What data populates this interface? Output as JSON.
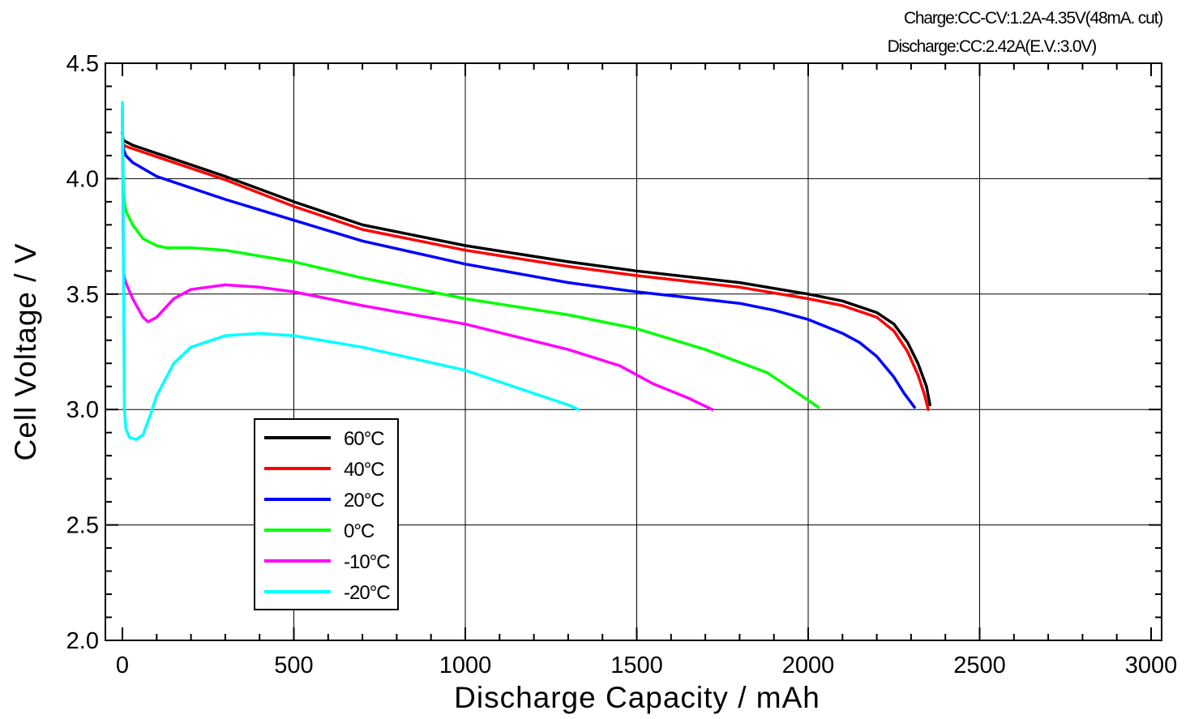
{
  "conditions": {
    "charge": "Charge:CC-CV:1.2A-4.35V(48mA. cut)",
    "discharge": "Discharge:CC:2.42A(E.V.:3.0V)"
  },
  "chart_data": {
    "type": "line",
    "xlabel": "Discharge  Capacity  /  mAh",
    "ylabel": "Cell  Voltage  /  V",
    "xlim": [
      0,
      3000
    ],
    "ylim": [
      2.0,
      4.5
    ],
    "xticks": [
      0,
      500,
      1000,
      1500,
      2000,
      2500,
      3000
    ],
    "xtick_labels": [
      "0",
      "500",
      "1000",
      "1500",
      "2000",
      "2500",
      "3000"
    ],
    "yticks": [
      2.0,
      2.5,
      3.0,
      3.5,
      4.0,
      4.5
    ],
    "ytick_labels": [
      "2.0",
      "2.5",
      "3.0",
      "3.5",
      "4.0",
      "4.5"
    ],
    "grid": true,
    "legend_position": "lower-left",
    "series": [
      {
        "name": "60°C",
        "color": "#000000",
        "x": [
          0,
          2,
          5,
          10,
          30,
          100,
          200,
          300,
          500,
          700,
          1000,
          1300,
          1500,
          1800,
          2000,
          2100,
          2200,
          2250,
          2290,
          2320,
          2345,
          2355
        ],
        "y": [
          4.2,
          4.17,
          4.165,
          4.16,
          4.145,
          4.11,
          4.06,
          4.01,
          3.9,
          3.8,
          3.71,
          3.64,
          3.6,
          3.55,
          3.5,
          3.47,
          3.42,
          3.37,
          3.29,
          3.2,
          3.1,
          3.02
        ]
      },
      {
        "name": "40°C",
        "color": "#ff0000",
        "x": [
          0,
          2,
          5,
          10,
          30,
          100,
          200,
          300,
          500,
          700,
          1000,
          1300,
          1500,
          1800,
          2000,
          2100,
          2200,
          2250,
          2290,
          2320,
          2340,
          2350
        ],
        "y": [
          4.17,
          4.15,
          4.145,
          4.14,
          4.13,
          4.095,
          4.045,
          3.995,
          3.88,
          3.78,
          3.69,
          3.62,
          3.58,
          3.53,
          3.48,
          3.45,
          3.4,
          3.34,
          3.25,
          3.15,
          3.06,
          3.0
        ]
      },
      {
        "name": "20°C",
        "color": "#0000ff",
        "x": [
          0,
          2,
          5,
          10,
          30,
          100,
          200,
          300,
          500,
          700,
          1000,
          1300,
          1500,
          1800,
          1900,
          2000,
          2100,
          2150,
          2200,
          2250,
          2280,
          2300,
          2310
        ],
        "y": [
          4.2,
          4.14,
          4.12,
          4.1,
          4.07,
          4.01,
          3.96,
          3.91,
          3.82,
          3.73,
          3.63,
          3.55,
          3.51,
          3.46,
          3.43,
          3.39,
          3.33,
          3.29,
          3.23,
          3.14,
          3.07,
          3.03,
          3.01
        ]
      },
      {
        "name": "0°C",
        "color": "#00ff00",
        "x": [
          0,
          3,
          6,
          10,
          30,
          60,
          100,
          130,
          200,
          300,
          500,
          700,
          1000,
          1300,
          1500,
          1700,
          1880,
          1950,
          2000,
          2030
        ],
        "y": [
          4.25,
          3.95,
          3.9,
          3.86,
          3.8,
          3.74,
          3.71,
          3.7,
          3.7,
          3.69,
          3.64,
          3.57,
          3.48,
          3.41,
          3.35,
          3.26,
          3.16,
          3.09,
          3.04,
          3.01
        ]
      },
      {
        "name": "-10°C",
        "color": "#ff00ff",
        "x": [
          0,
          3,
          6,
          10,
          30,
          60,
          75,
          100,
          150,
          200,
          300,
          400,
          500,
          700,
          1000,
          1300,
          1450,
          1550,
          1650,
          1720
        ],
        "y": [
          4.3,
          3.6,
          3.57,
          3.55,
          3.48,
          3.4,
          3.38,
          3.4,
          3.48,
          3.52,
          3.54,
          3.53,
          3.51,
          3.45,
          3.37,
          3.26,
          3.19,
          3.11,
          3.05,
          3.0
        ]
      },
      {
        "name": "-20°C",
        "color": "#00ffff",
        "x": [
          0,
          2,
          4,
          6,
          10,
          20,
          40,
          60,
          80,
          100,
          150,
          200,
          300,
          400,
          500,
          700,
          1000,
          1200,
          1300,
          1330
        ],
        "y": [
          4.33,
          4.0,
          3.4,
          3.0,
          2.92,
          2.88,
          2.87,
          2.89,
          2.97,
          3.06,
          3.2,
          3.27,
          3.32,
          3.33,
          3.32,
          3.27,
          3.17,
          3.07,
          3.02,
          3.0
        ]
      }
    ]
  }
}
